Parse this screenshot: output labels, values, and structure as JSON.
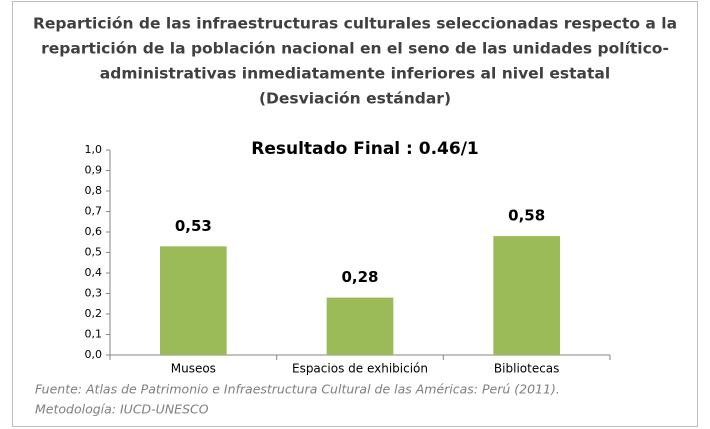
{
  "chart_data": {
    "type": "bar",
    "title": [
      "Repartición de las infraestructuras culturales seleccionadas respecto a la",
      "repartición de la población nacional en el seno de las unidades político-",
      "administrativas inmediatamente inferiores al nivel estatal",
      "(Desviación estándar)"
    ],
    "subtitle": "Resultado  Final : 0.46/1",
    "categories": [
      "Museos",
      "Espacios de exhibición",
      "Bibliotecas"
    ],
    "values": [
      0.53,
      0.28,
      0.58
    ],
    "value_labels": [
      "0,53",
      "0,28",
      "0,58"
    ],
    "color": "#9bbb59",
    "ylim": [
      0,
      1
    ],
    "yticks": [
      {
        "value": 0,
        "label": "0,0"
      },
      {
        "value": 0.1,
        "label": "0,1"
      },
      {
        "value": 0.2,
        "label": "0,2"
      },
      {
        "value": 0.3,
        "label": "0,3"
      },
      {
        "value": 0.4,
        "label": "0,4"
      },
      {
        "value": 0.5,
        "label": "0,5"
      },
      {
        "value": 0.6,
        "label": "0,6"
      },
      {
        "value": 0.7,
        "label": "0,7"
      },
      {
        "value": 0.8,
        "label": "0,8"
      },
      {
        "value": 0.9,
        "label": "0,9"
      },
      {
        "value": 1,
        "label": "1,0"
      }
    ],
    "grid": false,
    "notes": [
      "Fuente: Atlas de Patrimonio e Infraestructura  Cultural de las Américas: Perú (2011).",
      "Metodología: IUCD-UNESCO"
    ]
  }
}
